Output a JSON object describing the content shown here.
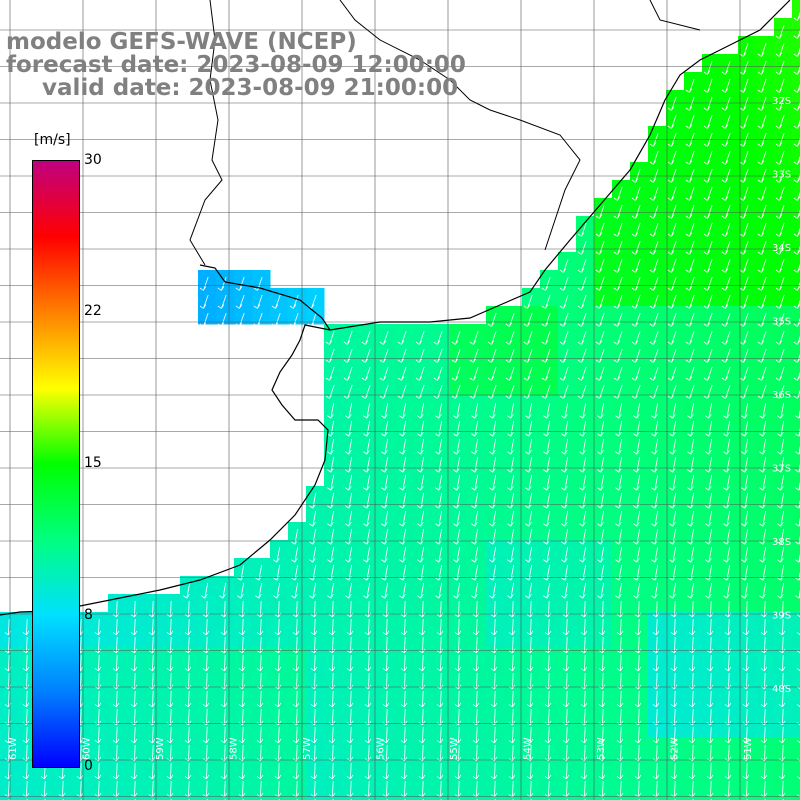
{
  "title": {
    "line1": "modelo GEFS-WAVE (NCEP)",
    "line2": "forecast date: 2023-08-09 12:00:00",
    "line3": "valid date: 2023-08-09 21:00:00"
  },
  "colorbar": {
    "units": "[m/s]",
    "ticks": [
      {
        "label": "30",
        "value": 30
      },
      {
        "label": "22",
        "value": 22
      },
      {
        "label": "15",
        "value": 15
      },
      {
        "label": "8",
        "value": 8
      },
      {
        "label": "0",
        "value": 0
      }
    ],
    "colors": [
      "#0000ff",
      "#0080ff",
      "#00e0ff",
      "#00ff80",
      "#00ff00",
      "#ffff00",
      "#ff8000",
      "#ff0000",
      "#c00080"
    ]
  },
  "axes": {
    "lon_labels": [
      "61W",
      "60W",
      "59W",
      "58W",
      "57W",
      "56W",
      "55W",
      "54W",
      "53W",
      "52W",
      "51W"
    ],
    "lat_labels": [
      "32S",
      "33S",
      "34S",
      "35S",
      "36S",
      "37S",
      "38S",
      "39S",
      "40S"
    ]
  },
  "colors": {
    "land": "#ffffff",
    "coast": "#000000",
    "grid": "#555555",
    "arrow": "#ffffff"
  }
}
